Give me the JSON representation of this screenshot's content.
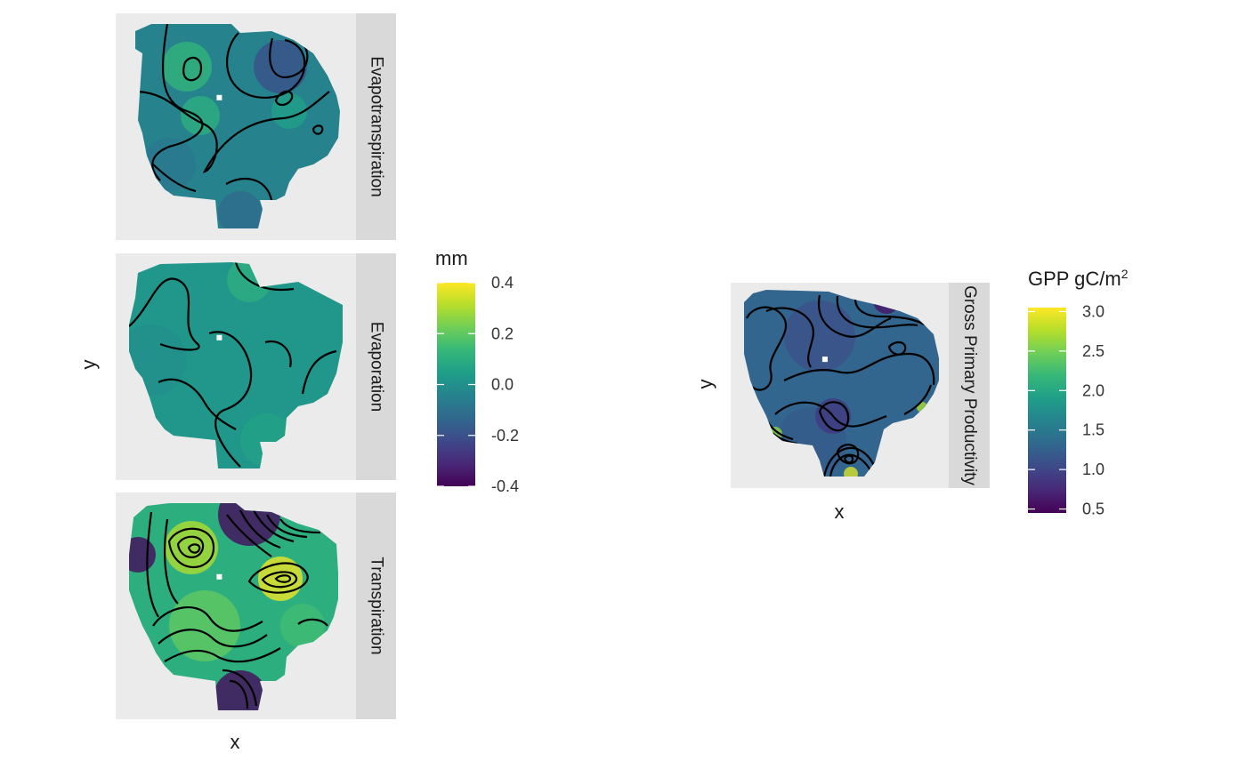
{
  "chart_data": [
    {
      "type": "heatmap",
      "subtype": "faceted raster with contour lines",
      "xlabel": "x",
      "ylabel": "y",
      "legend": {
        "title": "mm",
        "title_sup": "",
        "ticks": [
          0.4,
          0.2,
          0.0,
          -0.2,
          -0.4
        ],
        "tick_labels": [
          "0.4",
          "0.2",
          "0.0",
          "-0.2",
          "-0.4"
        ],
        "range": [
          -0.4,
          0.4
        ],
        "colormap": "viridis",
        "placement": "right"
      },
      "facets": [
        {
          "label": "Evapotranspiration",
          "background_value": -0.04
        },
        {
          "label": "Evaporation",
          "background_value": 0.02
        },
        {
          "label": "Transpiration",
          "background_value": 0.1
        }
      ]
    },
    {
      "type": "heatmap",
      "subtype": "faceted raster with contour lines",
      "xlabel": "x",
      "ylabel": "y",
      "legend": {
        "title": "GPP gC/m",
        "title_sup": "2",
        "ticks": [
          3.0,
          2.5,
          2.0,
          1.5,
          1.0,
          0.5
        ],
        "tick_labels": [
          "3.0",
          "2.5",
          "2.0",
          "1.5",
          "1.0",
          "0.5"
        ],
        "range": [
          0.45,
          3.05
        ],
        "colormap": "viridis",
        "placement": "right"
      },
      "facets": [
        {
          "label": "Gross Primary Productivity",
          "background_value": 1.3
        }
      ]
    }
  ],
  "colors": {
    "panel_background": "#ebebeb",
    "strip_background": "#d9d9d9",
    "contour": "#000000",
    "viridis": [
      "#440154",
      "#482878",
      "#3e4989",
      "#31688e",
      "#26828e",
      "#1f9e89",
      "#35b779",
      "#6ece58",
      "#b5de2b",
      "#fde725"
    ]
  }
}
